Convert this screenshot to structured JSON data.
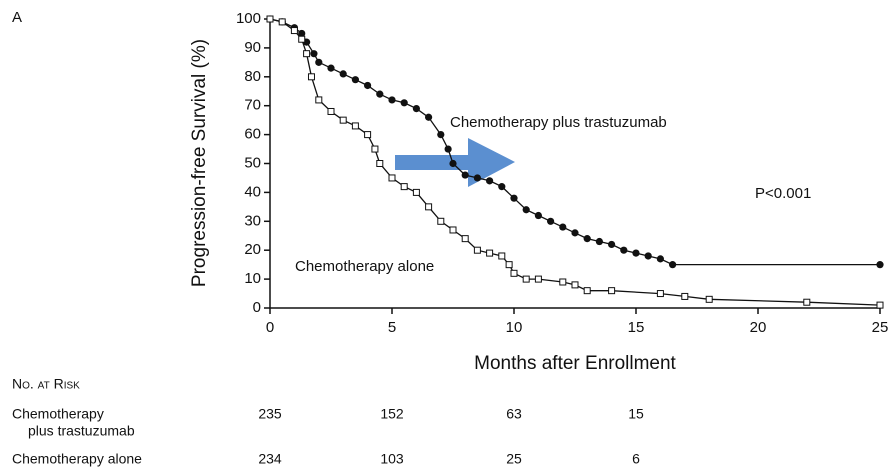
{
  "chart_data": {
    "type": "line",
    "panel_label": "A",
    "y_label": "Progression-free Survival (%)",
    "x_label": "Months after Enrollment",
    "xlim": [
      0,
      25
    ],
    "xticks": [
      0,
      5,
      10,
      15,
      20,
      25
    ],
    "ylim": [
      0,
      100
    ],
    "yticks": [
      0,
      10,
      20,
      30,
      40,
      50,
      60,
      70,
      80,
      90,
      100
    ],
    "annotations": [
      "Chemotherapy plus trastuzumab",
      "Chemotherapy alone",
      "P<0.001"
    ],
    "series": [
      {
        "name": "Chemotherapy plus trastuzumab",
        "color": "#111111",
        "marker": "circle",
        "x": [
          0,
          0.5,
          1,
          1.3,
          1.5,
          1.8,
          2,
          2.5,
          3,
          3.5,
          4,
          4.5,
          5,
          5.5,
          6,
          6.5,
          7,
          7.3,
          7.5,
          8,
          8.5,
          9,
          9.5,
          10,
          10.5,
          11,
          11.5,
          12,
          12.5,
          13,
          13.5,
          14,
          14.5,
          15,
          15.5,
          16,
          16.5,
          25
        ],
        "values": [
          100,
          99,
          97,
          95,
          92,
          88,
          85,
          83,
          81,
          79,
          77,
          74,
          72,
          71,
          69,
          66,
          60,
          55,
          50,
          46,
          45,
          44,
          42,
          38,
          34,
          32,
          30,
          28,
          26,
          24,
          23,
          22,
          20,
          19,
          18,
          17,
          15,
          15
        ]
      },
      {
        "name": "Chemotherapy alone",
        "color": "#111111",
        "marker": "square",
        "x": [
          0,
          0.5,
          1,
          1.3,
          1.5,
          1.7,
          2,
          2.5,
          3,
          3.5,
          4,
          4.3,
          4.5,
          5,
          5.5,
          6,
          6.5,
          7,
          7.5,
          8,
          8.5,
          9,
          9.5,
          9.8,
          10,
          10.5,
          11,
          12,
          12.5,
          13,
          14,
          16,
          17,
          18,
          22,
          25
        ],
        "values": [
          100,
          99,
          96,
          93,
          88,
          80,
          72,
          68,
          65,
          63,
          60,
          55,
          50,
          45,
          42,
          40,
          35,
          30,
          27,
          24,
          20,
          19,
          18,
          15,
          12,
          10,
          10,
          9,
          8,
          6,
          6,
          5,
          4,
          3,
          2,
          1
        ]
      }
    ],
    "risk_table": {
      "title": "No. at Risk",
      "times": [
        0,
        5,
        10,
        15
      ],
      "rows": [
        {
          "label": [
            "Chemotherapy",
            "plus trastuzumab"
          ],
          "values": [
            235,
            152,
            63,
            15
          ]
        },
        {
          "label": [
            "Chemotherapy alone"
          ],
          "values": [
            234,
            103,
            25,
            6
          ]
        }
      ]
    }
  }
}
